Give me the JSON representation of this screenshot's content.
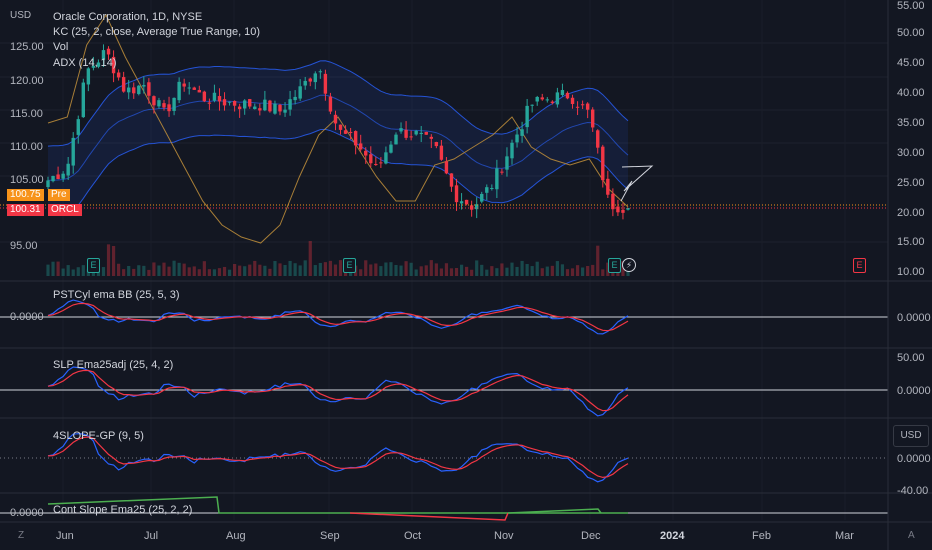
{
  "header": {
    "currency": "USD",
    "symbol_line": "Oracle Corporation, 1D, NYSE",
    "indicators": [
      "KC (25, 2, close, Average True Range, 10)",
      "Vol",
      "ADX (14, 14)"
    ]
  },
  "price_axis_left": [
    "125.00",
    "120.00",
    "115.00",
    "110.00",
    "105.00",
    "95.00"
  ],
  "price_axis_right": [
    "55.00",
    "50.00",
    "45.00",
    "40.00",
    "35.00",
    "30.00",
    "25.00",
    "20.00",
    "15.00",
    "10.00"
  ],
  "price_tags": {
    "pre": {
      "value": "100.75",
      "label": "Pre",
      "color": "#f7931a"
    },
    "last": {
      "value": "100.31",
      "label": "ORCL",
      "color": "#f23645"
    }
  },
  "panes": [
    {
      "title": "PSTCyl ema BB (25, 5, 3)",
      "left_value": "0.0000",
      "right_ticks": [
        "0.0000"
      ]
    },
    {
      "title": "SLP Ema25adj (25, 4, 2)",
      "left_value": "",
      "right_ticks": [
        "50.00",
        "0.0000"
      ]
    },
    {
      "title": "4SLOPE-GP (9, 5)",
      "left_value": "",
      "right_ticks": [
        "0.0000",
        "-40.00"
      ]
    },
    {
      "title": "Cont Slope Ema25 (25, 2, 2)",
      "left_value": "0.0000",
      "right_ticks": []
    }
  ],
  "currency_button": "USD",
  "x_axis": [
    "Jun",
    "Jul",
    "Aug",
    "Sep",
    "Oct",
    "Nov",
    "Dec",
    "2024",
    "Feb",
    "Mar"
  ],
  "x_axis_bold": "2024",
  "corner_left": "Z",
  "corner_right": "A",
  "earnings_badge": "E",
  "dividend_glyph": "⚡",
  "colors": {
    "up": "#26a69a",
    "down": "#f23645",
    "band": "#2962ff",
    "adx": "#b8893a",
    "blue_line": "#2962ff",
    "red_line": "#f23645",
    "green_line": "#4caf50"
  },
  "chart_data": {
    "type": "candlestick",
    "symbol": "ORCL",
    "title": "Oracle Corporation, 1D, NYSE",
    "x_range": [
      "2023-05-26",
      "2023-12-15"
    ],
    "y_range": [
      92,
      130
    ],
    "x": [
      "May 26",
      "Jun 2",
      "Jun 9",
      "Jun 16",
      "Jun 23",
      "Jun 30",
      "Jul 7",
      "Jul 14",
      "Jul 21",
      "Jul 28",
      "Aug 4",
      "Aug 11",
      "Aug 18",
      "Aug 25",
      "Sep 1",
      "Sep 8",
      "Sep 15",
      "Sep 22",
      "Sep 29",
      "Oct 6",
      "Oct 13",
      "Oct 20",
      "Oct 27",
      "Nov 3",
      "Nov 10",
      "Nov 17",
      "Nov 24",
      "Dec 1",
      "Dec 8",
      "Dec 13",
      "Dec 15"
    ],
    "close": [
      104.5,
      106.5,
      121,
      124,
      118,
      119,
      114.5,
      119.5,
      117,
      116.5,
      116,
      116,
      115,
      118,
      122,
      112,
      110,
      106,
      112,
      111.5,
      109.5,
      102.5,
      100.5,
      104,
      110,
      116,
      117,
      117.5,
      114.5,
      101,
      100.31
    ],
    "adx": [
      35,
      36,
      48,
      53,
      46,
      40,
      34,
      28,
      22,
      18,
      16,
      15,
      18,
      26,
      33,
      36,
      31,
      26,
      22,
      22,
      28,
      29,
      31,
      33,
      36,
      31,
      29,
      28,
      29,
      24,
      21
    ],
    "earnings": [
      "Jun 12",
      "Sep 11",
      "Dec 11",
      "Mar"
    ],
    "last": 100.31,
    "premarket": 100.75
  }
}
